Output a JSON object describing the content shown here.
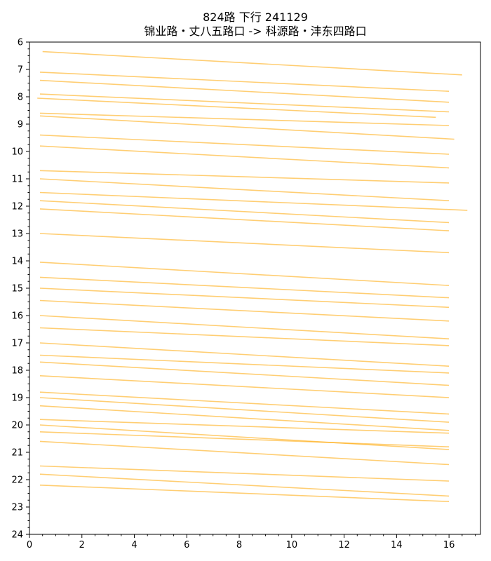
{
  "chart_data": {
    "type": "line",
    "title_line1": "824路 下行 241129",
    "title_line2": "锦业路・丈八五路口 -> 科源路・沣东四路口",
    "xlabel": "",
    "ylabel": "",
    "xlim": [
      0,
      17.2
    ],
    "ylim": [
      24,
      6
    ],
    "y_inverted": true,
    "grid": false,
    "line_color": "#ffa500",
    "x_ticks": [
      0,
      2,
      4,
      6,
      8,
      10,
      12,
      14,
      16
    ],
    "x_tick_labels": [
      "0",
      "2",
      "4",
      "6",
      "8",
      "10",
      "12",
      "14",
      "16"
    ],
    "y_ticks": [
      6,
      7,
      8,
      9,
      10,
      11,
      12,
      13,
      14,
      15,
      16,
      17,
      18,
      19,
      20,
      21,
      22,
      23,
      24
    ],
    "y_tick_labels": [
      "6",
      "7",
      "8",
      "9",
      "10",
      "11",
      "12",
      "13",
      "14",
      "15",
      "16",
      "17",
      "18",
      "19",
      "20",
      "21",
      "22",
      "23",
      "24"
    ],
    "series": [
      {
        "x": [
          0.5,
          16.5
        ],
        "y": [
          6.35,
          7.2
        ]
      },
      {
        "x": [
          0.3,
          15.5
        ],
        "y": [
          8.05,
          8.75
        ]
      },
      {
        "x": [
          0.4,
          16.2
        ],
        "y": [
          8.7,
          9.55
        ]
      },
      {
        "x": [
          0.4,
          16.0
        ],
        "y": [
          10.7,
          11.15
        ]
      },
      {
        "x": [
          0.4,
          16.7
        ],
        "y": [
          11.5,
          12.15
        ]
      },
      {
        "x": [
          0.4,
          16.0
        ],
        "y": [
          12.1,
          12.9
        ]
      },
      {
        "x": [
          0.4,
          16.0
        ],
        "y": [
          14.05,
          14.9
        ]
      },
      {
        "x": [
          0.4,
          16.0
        ],
        "y": [
          15.0,
          15.7
        ]
      },
      {
        "x": [
          0.4,
          16.0
        ],
        "y": [
          15.45,
          16.2
        ]
      },
      {
        "x": [
          0.4,
          16.0
        ],
        "y": [
          16.45,
          17.1
        ]
      },
      {
        "x": [
          0.4,
          16.0
        ],
        "y": [
          17.0,
          17.85
        ]
      },
      {
        "x": [
          0.4,
          16.0
        ],
        "y": [
          17.45,
          18.1
        ]
      },
      {
        "x": [
          0.4,
          16.0
        ],
        "y": [
          19.8,
          20.3
        ]
      },
      {
        "x": [
          0.4,
          16.0
        ],
        "y": [
          20.25,
          20.8
        ]
      },
      {
        "x": [
          0.4,
          16.0
        ],
        "y": [
          20.6,
          21.45
        ]
      },
      {
        "x": [
          0.4,
          16.0
        ],
        "y": [
          22.2,
          22.8
        ]
      },
      {
        "x": [
          0.4,
          16.0
        ],
        "y": [
          21.5,
          22.05
        ]
      },
      {
        "x": [
          0.4,
          16.0
        ],
        "y": [
          21.8,
          22.6
        ]
      },
      {
        "x": [
          0.4,
          16.0
        ],
        "y": [
          9.8,
          10.6
        ]
      },
      {
        "x": [
          0.4,
          16.0
        ],
        "y": [
          9.4,
          10.1
        ]
      },
      {
        "x": [
          0.4,
          16.0
        ],
        "y": [
          7.9,
          8.55
        ]
      },
      {
        "x": [
          0.4,
          16.0
        ],
        "y": [
          7.4,
          8.2
        ]
      },
      {
        "x": [
          0.4,
          16.0
        ],
        "y": [
          7.1,
          7.8
        ]
      },
      {
        "x": [
          0.4,
          16.0
        ],
        "y": [
          8.6,
          9.05
        ]
      },
      {
        "x": [
          0.4,
          16.0
        ],
        "y": [
          11.0,
          11.8
        ]
      },
      {
        "x": [
          0.4,
          16.0
        ],
        "y": [
          11.8,
          12.6
        ]
      },
      {
        "x": [
          0.4,
          16.0
        ],
        "y": [
          13.0,
          13.7
        ]
      },
      {
        "x": [
          0.4,
          16.0
        ],
        "y": [
          14.6,
          15.35
        ]
      },
      {
        "x": [
          0.4,
          16.0
        ],
        "y": [
          16.0,
          16.85
        ]
      },
      {
        "x": [
          0.4,
          16.0
        ],
        "y": [
          17.7,
          18.55
        ]
      },
      {
        "x": [
          0.4,
          16.0
        ],
        "y": [
          18.8,
          19.6
        ]
      },
      {
        "x": [
          0.4,
          16.0
        ],
        "y": [
          19.0,
          19.9
        ]
      },
      {
        "x": [
          0.4,
          16.0
        ],
        "y": [
          19.3,
          20.2
        ]
      },
      {
        "x": [
          0.4,
          16.0
        ],
        "y": [
          20.0,
          20.9
        ]
      },
      {
        "x": [
          0.4,
          16.0
        ],
        "y": [
          18.2,
          19.0
        ]
      }
    ]
  }
}
